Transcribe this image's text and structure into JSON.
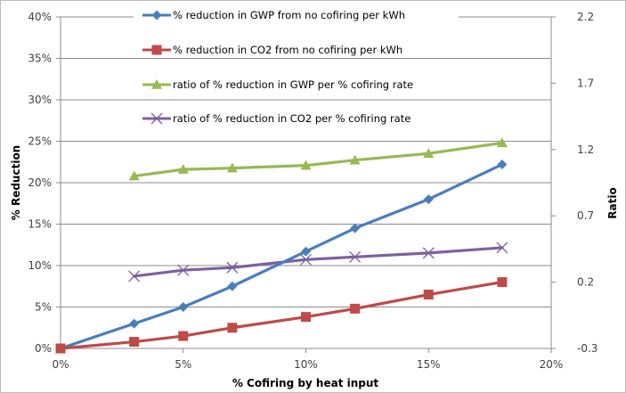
{
  "chart_data": {
    "type": "line",
    "title": "",
    "xlabel": "% Cofiring by heat input",
    "ylabel": "% Reduction",
    "y2label": "Ratio",
    "xlim": [
      0,
      20
    ],
    "ylim": [
      0,
      40
    ],
    "y2lim": [
      -0.3,
      2.2
    ],
    "x_ticks": [
      "0%",
      "5%",
      "10%",
      "15%",
      "20%"
    ],
    "y_ticks": [
      "0%",
      "5%",
      "10%",
      "15%",
      "20%",
      "25%",
      "30%",
      "35%",
      "40%"
    ],
    "y2_ticks": [
      "-0.3",
      "0.2",
      "0.7",
      "1.2",
      "1.7",
      "2.2"
    ],
    "grid": true,
    "legend_position": "top-center",
    "series": [
      {
        "name": "% reduction in GWP from no cofiring per kWh",
        "axis": "left",
        "color": "#4a7ebb",
        "marker": "diamond",
        "x": [
          0,
          3,
          5,
          7,
          10,
          12,
          15,
          18
        ],
        "values": [
          0,
          3.0,
          5.0,
          7.5,
          11.7,
          14.5,
          18.0,
          22.2
        ]
      },
      {
        "name": "% reduction in CO2 from no cofiring per kWh",
        "axis": "left",
        "color": "#be4b48",
        "marker": "square",
        "x": [
          0,
          3,
          5,
          7,
          10,
          12,
          15,
          18
        ],
        "values": [
          0,
          0.8,
          1.5,
          2.5,
          3.8,
          4.8,
          6.5,
          8.0
        ]
      },
      {
        "name": "ratio of % reduction in GWP per % cofiring rate",
        "axis": "right",
        "color": "#98b954",
        "marker": "triangle",
        "x": [
          3,
          5,
          7,
          10,
          12,
          15,
          18
        ],
        "values": [
          1.0,
          1.05,
          1.06,
          1.08,
          1.12,
          1.17,
          1.25
        ]
      },
      {
        "name": "ratio of % reduction in CO2 per % cofiring rate",
        "axis": "right",
        "color": "#7d60a0",
        "marker": "x",
        "x": [
          3,
          5,
          7,
          10,
          12,
          15,
          18
        ],
        "values": [
          0.245,
          0.29,
          0.31,
          0.37,
          0.39,
          0.42,
          0.46
        ]
      }
    ]
  }
}
